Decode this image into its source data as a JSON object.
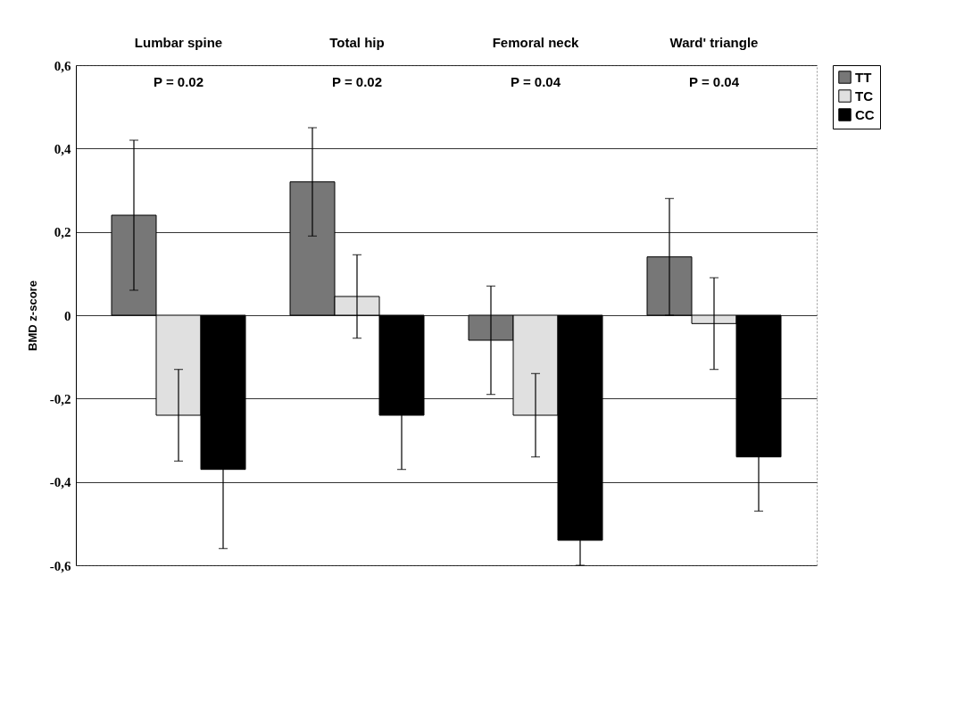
{
  "chart_data": {
    "type": "bar",
    "ylabel": "BMD z-score",
    "categories": [
      "Lumbar spine",
      "Total hip",
      "Femoral neck",
      "Ward' triangle"
    ],
    "series": [
      {
        "name": "TT",
        "color": "#777777",
        "values": [
          0.24,
          0.32,
          -0.06,
          0.14
        ],
        "errors": [
          0.18,
          0.13,
          0.13,
          0.14
        ]
      },
      {
        "name": "TC",
        "color": "#e0e0e0",
        "values": [
          -0.24,
          0.045,
          -0.24,
          -0.02
        ],
        "errors": [
          0.11,
          0.1,
          0.1,
          0.11
        ]
      },
      {
        "name": "CC",
        "color": "#000000",
        "values": [
          -0.37,
          -0.24,
          -0.54,
          -0.34
        ],
        "errors": [
          0.19,
          0.13,
          0.06,
          0.13
        ]
      }
    ],
    "ylim": [
      -0.6,
      0.6
    ],
    "yticks": [
      {
        "value": -0.6,
        "label": "-0,6"
      },
      {
        "value": -0.4,
        "label": "-0,4"
      },
      {
        "value": -0.2,
        "label": "-0,2"
      },
      0,
      {
        "value": 0.2,
        "label": "0,2"
      },
      {
        "value": 0.4,
        "label": "0,4"
      },
      {
        "value": 0.6,
        "label": "0,6"
      }
    ],
    "grid": "y",
    "legend": "right",
    "annotations": [
      "P = 0.02",
      "P = 0.02",
      "P = 0.04",
      "P = 0.04"
    ]
  }
}
